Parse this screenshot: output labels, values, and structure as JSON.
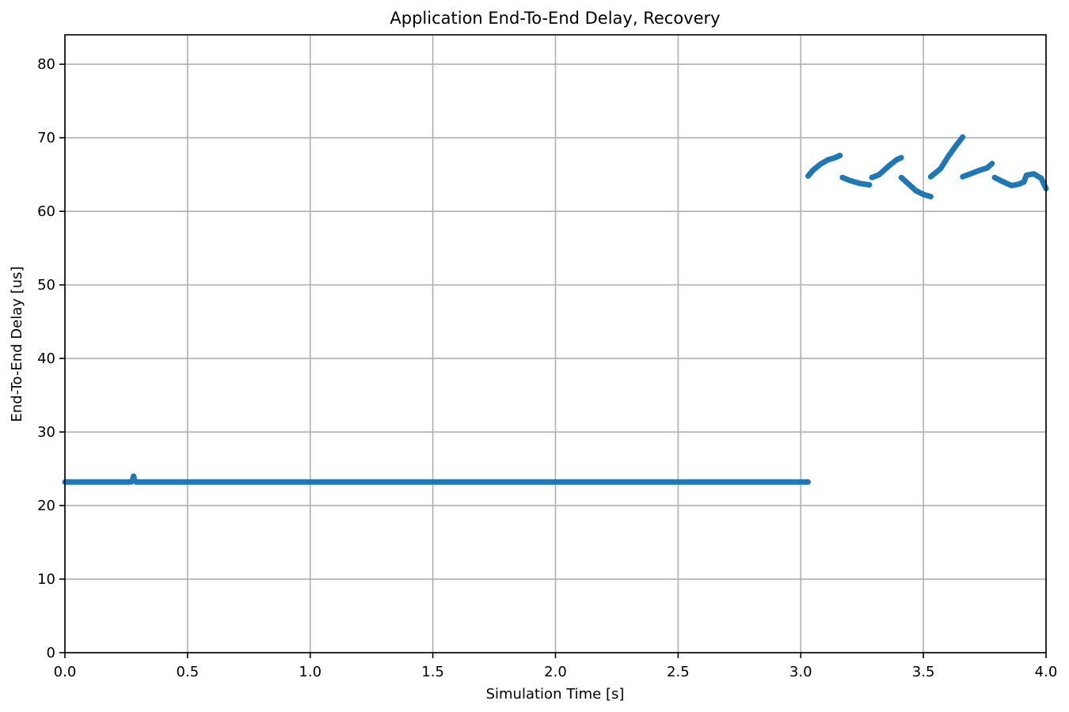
{
  "chart_data": {
    "type": "line",
    "title": "Application End-To-End Delay, Recovery",
    "xlabel": "Simulation Time [s]",
    "ylabel": "End-To-End Delay [us]",
    "xlim": [
      0,
      4
    ],
    "ylim": [
      0,
      84
    ],
    "xticks": [
      0,
      0.5,
      1,
      1.5,
      2,
      2.5,
      3,
      3.5,
      4
    ],
    "xtick_labels": [
      "0.0",
      "0.5",
      "1.0",
      "1.5",
      "2.0",
      "2.5",
      "3.0",
      "3.5",
      "4.0"
    ],
    "yticks": [
      0,
      10,
      20,
      30,
      40,
      50,
      60,
      70,
      80
    ],
    "ytick_labels": [
      "0",
      "10",
      "20",
      "30",
      "40",
      "50",
      "60",
      "70",
      "80"
    ],
    "grid": true,
    "color": "#1f77b4",
    "series": [
      {
        "segments": [
          [
            [
              0.0,
              23.2
            ],
            [
              0.27,
              23.2
            ],
            [
              0.275,
              23.4
            ],
            [
              0.28,
              24.0
            ],
            [
              0.285,
              23.3
            ],
            [
              0.29,
              23.2
            ],
            [
              3.03,
              23.2
            ]
          ],
          [
            [
              3.03,
              64.8
            ],
            [
              3.05,
              65.6
            ],
            [
              3.08,
              66.4
            ],
            [
              3.11,
              67.0
            ],
            [
              3.14,
              67.3
            ],
            [
              3.16,
              67.6
            ]
          ],
          [
            [
              3.17,
              64.6
            ],
            [
              3.2,
              64.2
            ],
            [
              3.24,
              63.8
            ],
            [
              3.28,
              63.6
            ]
          ],
          [
            [
              3.29,
              64.6
            ],
            [
              3.32,
              65.0
            ],
            [
              3.36,
              66.2
            ],
            [
              3.39,
              67.0
            ],
            [
              3.41,
              67.3
            ]
          ],
          [
            [
              3.41,
              64.6
            ],
            [
              3.44,
              63.7
            ],
            [
              3.47,
              62.8
            ],
            [
              3.5,
              62.3
            ],
            [
              3.53,
              62.0
            ]
          ],
          [
            [
              3.53,
              64.7
            ],
            [
              3.57,
              65.8
            ],
            [
              3.6,
              67.4
            ],
            [
              3.63,
              68.8
            ],
            [
              3.66,
              70.1
            ]
          ],
          [
            [
              3.66,
              64.7
            ],
            [
              3.7,
              65.2
            ],
            [
              3.73,
              65.6
            ],
            [
              3.76,
              65.9
            ],
            [
              3.78,
              66.5
            ]
          ],
          [
            [
              3.79,
              64.6
            ],
            [
              3.82,
              64.1
            ],
            [
              3.86,
              63.5
            ],
            [
              3.89,
              63.7
            ],
            [
              3.91,
              64.0
            ],
            [
              3.92,
              64.9
            ],
            [
              3.95,
              65.1
            ],
            [
              3.98,
              64.5
            ],
            [
              4.0,
              63.1
            ]
          ]
        ]
      }
    ]
  }
}
